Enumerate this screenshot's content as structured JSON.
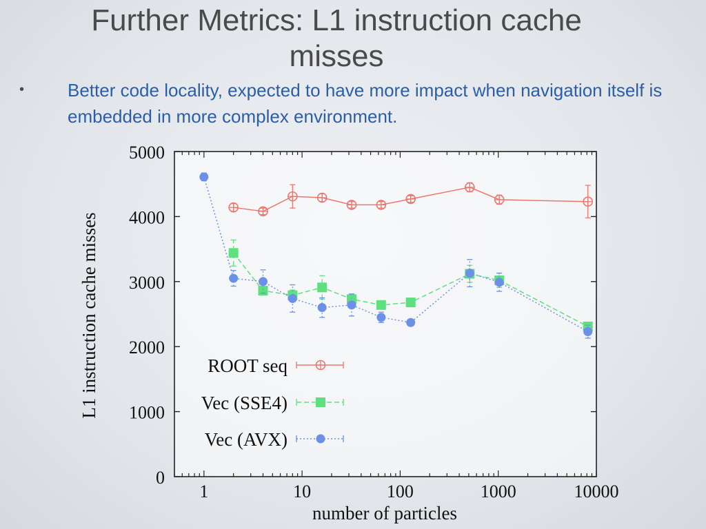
{
  "slide": {
    "title": "Further Metrics: L1 instruction cache misses",
    "bullet": "Better code locality, expected to have more impact when navigation itself is embedded in more complex environment.",
    "bullet_symbol": "•"
  },
  "chart_data": {
    "type": "line",
    "title": "",
    "xlabel": "number of particles",
    "ylabel": "L1 instruction cache misses",
    "xscale": "log",
    "xlim": [
      0.5,
      10000
    ],
    "ylim": [
      0,
      5000
    ],
    "x_ticks": [
      1,
      10,
      100,
      1000,
      10000
    ],
    "x_tick_labels": [
      "1",
      "10",
      "100",
      "1000",
      "10000"
    ],
    "y_ticks": [
      0,
      1000,
      2000,
      3000,
      4000,
      5000
    ],
    "y_tick_labels": [
      "0",
      "1000",
      "2000",
      "3000",
      "4000",
      "5000"
    ],
    "legend_position": "bottom-left",
    "series": [
      {
        "name": "ROOT seq",
        "color": "#e8786e",
        "marker": "open-circle",
        "line": "solid",
        "x": [
          2,
          4,
          8,
          16,
          32,
          64,
          128,
          512,
          1024,
          8192
        ],
        "values": [
          4140,
          4080,
          4310,
          4290,
          4180,
          4180,
          4270,
          4450,
          4260,
          4230
        ],
        "errors": [
          60,
          50,
          180,
          60,
          50,
          50,
          50,
          70,
          70,
          250
        ]
      },
      {
        "name": "Vec (SSE4)",
        "color": "#5fe07e",
        "marker": "filled-square",
        "line": "dashed",
        "x": [
          2,
          4,
          8,
          16,
          32,
          64,
          128,
          512,
          1024,
          8192
        ],
        "values": [
          3440,
          2860,
          2790,
          2910,
          2730,
          2640,
          2680,
          3120,
          3020,
          2310
        ],
        "errors": [
          200,
          60,
          80,
          180,
          70,
          50,
          40,
          130,
          110,
          60
        ]
      },
      {
        "name": "Vec (AVX)",
        "color": "#6a91e6",
        "marker": "filled-circle",
        "line": "dotted",
        "x": [
          1,
          2,
          4,
          8,
          16,
          32,
          64,
          128,
          512,
          1024,
          8192
        ],
        "values": [
          4610,
          3050,
          3000,
          2740,
          2600,
          2640,
          2450,
          2370,
          3130,
          2990,
          2230
        ],
        "errors": [
          60,
          120,
          180,
          210,
          150,
          170,
          80,
          50,
          210,
          140,
          100
        ]
      }
    ]
  }
}
